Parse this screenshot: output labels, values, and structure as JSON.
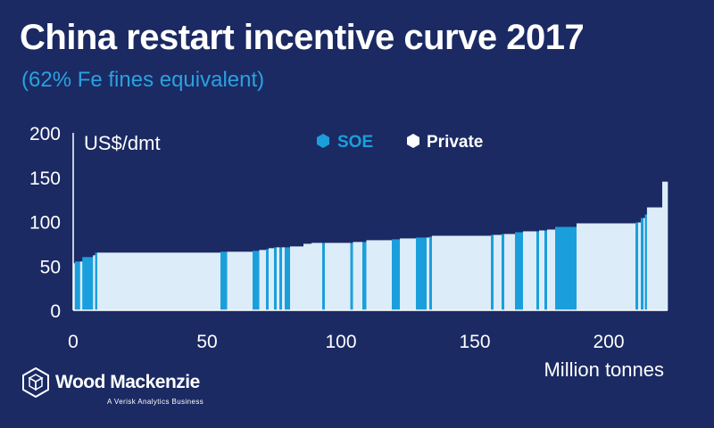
{
  "header": {
    "title": "China restart incentive curve 2017",
    "subtitle": "(62% Fe fines equivalent)"
  },
  "brand": {
    "name": "Wood Mackenzie",
    "tagline": "A Verisk Analytics Business",
    "logo_icon": "hexagon-cube-icon"
  },
  "colors": {
    "background": "#1b2a63",
    "soe": "#1b9fdc",
    "private": "#dcecf8",
    "subtitle": "#2aa1e0"
  },
  "chart_data": {
    "type": "bar",
    "xlabel": "Million tonnes",
    "ylabel": "US$/dmt",
    "xlim": [
      0,
      222
    ],
    "ylim": [
      0,
      200
    ],
    "xticks": [
      0,
      50,
      100,
      150,
      200
    ],
    "yticks": [
      0,
      50,
      100,
      150,
      200
    ],
    "legend": [
      {
        "name": "SOE",
        "icon": "hexagon-icon",
        "color": "#1b9fdc"
      },
      {
        "name": "Private",
        "icon": "hexagon-icon",
        "color": "#dcecf8"
      }
    ],
    "legend_position": "top-center",
    "grid": false,
    "bars": [
      {
        "start": 0,
        "end": 0.6,
        "value": 53,
        "group": "Private"
      },
      {
        "start": 0.6,
        "end": 2.6,
        "value": 55,
        "group": "SOE"
      },
      {
        "start": 2.6,
        "end": 3.4,
        "value": 55,
        "group": "Private"
      },
      {
        "start": 3.4,
        "end": 7.4,
        "value": 60,
        "group": "SOE"
      },
      {
        "start": 7.4,
        "end": 8.2,
        "value": 62,
        "group": "Private"
      },
      {
        "start": 8.2,
        "end": 9.0,
        "value": 65,
        "group": "SOE"
      },
      {
        "start": 9.0,
        "end": 55.0,
        "value": 65,
        "group": "Private"
      },
      {
        "start": 55.0,
        "end": 57.5,
        "value": 66,
        "group": "SOE"
      },
      {
        "start": 57.5,
        "end": 67.0,
        "value": 66,
        "group": "Private"
      },
      {
        "start": 67.0,
        "end": 69.5,
        "value": 67,
        "group": "SOE"
      },
      {
        "start": 69.5,
        "end": 72.0,
        "value": 68,
        "group": "Private"
      },
      {
        "start": 72.0,
        "end": 73.0,
        "value": 69,
        "group": "SOE"
      },
      {
        "start": 73.0,
        "end": 75.0,
        "value": 70,
        "group": "Private"
      },
      {
        "start": 75.0,
        "end": 76.0,
        "value": 71,
        "group": "SOE"
      },
      {
        "start": 76.0,
        "end": 77.0,
        "value": 71,
        "group": "Private"
      },
      {
        "start": 77.0,
        "end": 78.0,
        "value": 71,
        "group": "SOE"
      },
      {
        "start": 78.0,
        "end": 79.0,
        "value": 71,
        "group": "Private"
      },
      {
        "start": 79.0,
        "end": 81.0,
        "value": 71,
        "group": "SOE"
      },
      {
        "start": 81.0,
        "end": 86.0,
        "value": 72,
        "group": "Private"
      },
      {
        "start": 86.0,
        "end": 89.0,
        "value": 75,
        "group": "Private"
      },
      {
        "start": 89.0,
        "end": 93.0,
        "value": 76,
        "group": "Private"
      },
      {
        "start": 93.0,
        "end": 94.0,
        "value": 76,
        "group": "SOE"
      },
      {
        "start": 94.0,
        "end": 103.5,
        "value": 76,
        "group": "Private"
      },
      {
        "start": 103.5,
        "end": 104.5,
        "value": 76,
        "group": "SOE"
      },
      {
        "start": 104.5,
        "end": 108.0,
        "value": 77,
        "group": "Private"
      },
      {
        "start": 108.0,
        "end": 109.5,
        "value": 77,
        "group": "SOE"
      },
      {
        "start": 109.5,
        "end": 119.0,
        "value": 79,
        "group": "Private"
      },
      {
        "start": 119.0,
        "end": 122.0,
        "value": 80,
        "group": "SOE"
      },
      {
        "start": 122.0,
        "end": 128.0,
        "value": 81,
        "group": "Private"
      },
      {
        "start": 128.0,
        "end": 132.0,
        "value": 82,
        "group": "SOE"
      },
      {
        "start": 132.0,
        "end": 133.0,
        "value": 82,
        "group": "Private"
      },
      {
        "start": 133.0,
        "end": 134.0,
        "value": 83,
        "group": "SOE"
      },
      {
        "start": 134.0,
        "end": 156.0,
        "value": 84,
        "group": "Private"
      },
      {
        "start": 156.0,
        "end": 157.0,
        "value": 85,
        "group": "SOE"
      },
      {
        "start": 157.0,
        "end": 160.0,
        "value": 85,
        "group": "Private"
      },
      {
        "start": 160.0,
        "end": 161.0,
        "value": 86,
        "group": "SOE"
      },
      {
        "start": 161.0,
        "end": 165.0,
        "value": 86,
        "group": "Private"
      },
      {
        "start": 165.0,
        "end": 168.0,
        "value": 88,
        "group": "SOE"
      },
      {
        "start": 168.0,
        "end": 173.0,
        "value": 89,
        "group": "Private"
      },
      {
        "start": 173.0,
        "end": 174.0,
        "value": 89,
        "group": "SOE"
      },
      {
        "start": 174.0,
        "end": 176.0,
        "value": 90,
        "group": "Private"
      },
      {
        "start": 176.0,
        "end": 177.0,
        "value": 90,
        "group": "SOE"
      },
      {
        "start": 177.0,
        "end": 180.0,
        "value": 91,
        "group": "Private"
      },
      {
        "start": 180.0,
        "end": 188.0,
        "value": 94,
        "group": "SOE"
      },
      {
        "start": 188.0,
        "end": 210.0,
        "value": 98,
        "group": "Private"
      },
      {
        "start": 210.0,
        "end": 211.0,
        "value": 99,
        "group": "SOE"
      },
      {
        "start": 211.0,
        "end": 212.0,
        "value": 99,
        "group": "Private"
      },
      {
        "start": 212.0,
        "end": 213.0,
        "value": 104,
        "group": "SOE"
      },
      {
        "start": 213.0,
        "end": 213.5,
        "value": 104,
        "group": "Private"
      },
      {
        "start": 213.5,
        "end": 214.3,
        "value": 108,
        "group": "SOE"
      },
      {
        "start": 214.3,
        "end": 220.0,
        "value": 116,
        "group": "Private"
      },
      {
        "start": 220.0,
        "end": 222.0,
        "value": 145,
        "group": "Private"
      }
    ]
  }
}
